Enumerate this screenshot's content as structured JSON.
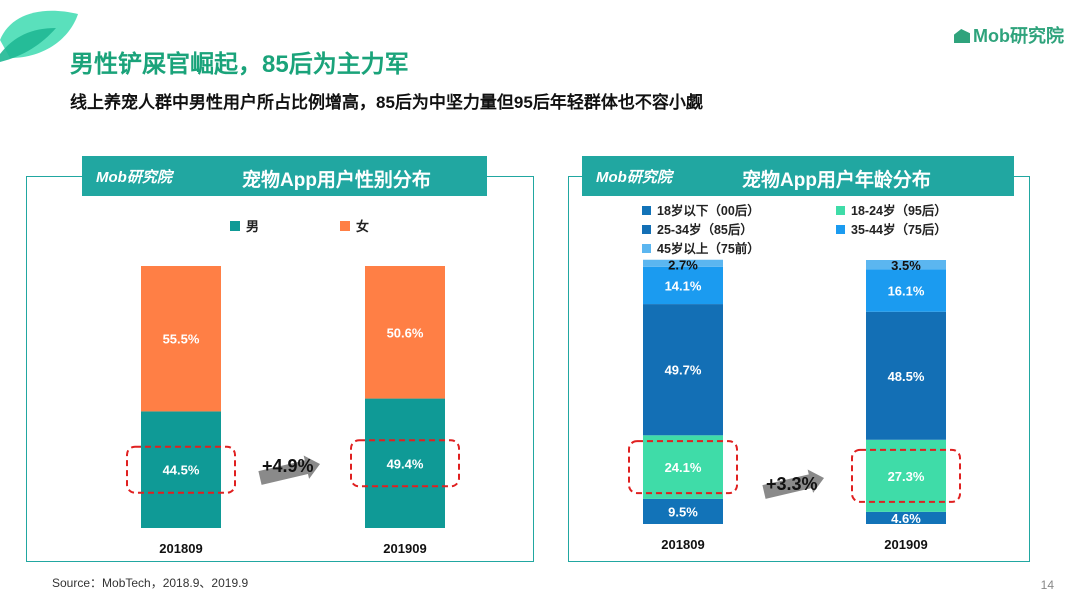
{
  "slide": {
    "title": "男性铲屎官崛起，85后为主力军",
    "subtitle": "线上养宠人群中男性用户所占比例增高，85后为中坚力量但95后年轻群体也不容小觑",
    "brand": "Mob研究院",
    "source": "Source：MobTech，2018.9、2019.9",
    "page_number": "14"
  },
  "colors": {
    "accent": "#21a7a1",
    "male": "#0f9a96",
    "female": "#ff7f45",
    "highlight": "#e02020"
  },
  "chart_data": [
    {
      "type": "bar",
      "stacked": true,
      "title": "宠物App用户性别分布",
      "logo": "Mob研究院",
      "categories": [
        "201809",
        "201909"
      ],
      "series": [
        {
          "name": "男",
          "color": "#0f9a96",
          "values": [
            44.5,
            49.4
          ],
          "labels": [
            "44.5%",
            "49.4%"
          ]
        },
        {
          "name": "女",
          "color": "#ff7f45",
          "values": [
            55.5,
            50.6
          ],
          "labels": [
            "55.5%",
            "50.6%"
          ]
        }
      ],
      "annotation": "+4.9%",
      "legend": "top",
      "ylim": [
        0,
        100
      ]
    },
    {
      "type": "bar",
      "stacked": true,
      "title": "宠物App用户年龄分布",
      "logo": "Mob研究院",
      "categories": [
        "201809",
        "201909"
      ],
      "series": [
        {
          "name": "18岁以下（00后）",
          "color": "#1273b8",
          "values": [
            9.5,
            4.6
          ],
          "labels": [
            "9.5%",
            "4.6%"
          ]
        },
        {
          "name": "18-24岁（95后）",
          "color": "#3fdca8",
          "values": [
            24.1,
            27.3
          ],
          "labels": [
            "24.1%",
            "27.3%"
          ]
        },
        {
          "name": "25-34岁（85后）",
          "color": "#136fb5",
          "values": [
            49.7,
            48.5
          ],
          "labels": [
            "49.7%",
            "48.5%"
          ]
        },
        {
          "name": "35-44岁（75后）",
          "color": "#1b9bf0",
          "values": [
            14.1,
            16.1
          ],
          "labels": [
            "14.1%",
            "16.1%"
          ]
        },
        {
          "name": "45岁以上（75前）",
          "color": "#5bb6f0",
          "values": [
            2.7,
            3.5
          ],
          "labels": [
            "2.7%",
            "3.5%"
          ]
        }
      ],
      "annotation": "+3.3%",
      "legend": "top",
      "ylim": [
        0,
        100
      ]
    }
  ]
}
